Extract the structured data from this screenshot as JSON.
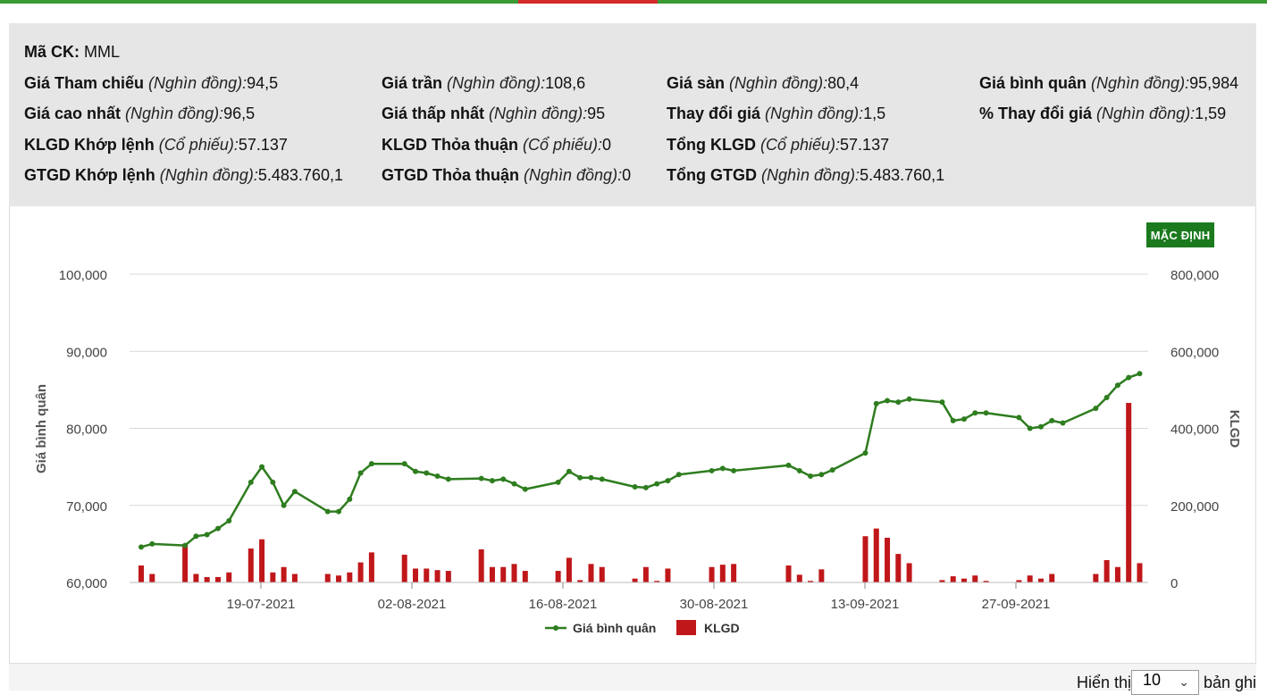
{
  "info": {
    "ticker_label": "Mã CK:",
    "ticker_value": "MML",
    "rows": [
      [
        {
          "label": "Giá Tham chiếu",
          "unit": "(Nghìn đồng):",
          "value": "94,5"
        },
        {
          "label": "Giá trần",
          "unit": "(Nghìn đồng):",
          "value": "108,6"
        },
        {
          "label": "Giá sàn",
          "unit": "(Nghìn đồng):",
          "value": "80,4"
        },
        {
          "label": "Giá bình quân",
          "unit": "(Nghìn đồng):",
          "value": "95,984"
        }
      ],
      [
        {
          "label": "Giá cao nhất",
          "unit": "(Nghìn đồng):",
          "value": "96,5"
        },
        {
          "label": "Giá thấp nhất",
          "unit": "(Nghìn đồng):",
          "value": "95"
        },
        {
          "label": "Thay đổi giá",
          "unit": "(Nghìn đồng):",
          "value": "1,5"
        },
        {
          "label": "% Thay đổi giá",
          "unit": "(Nghìn đồng):",
          "value": "1,59"
        }
      ],
      [
        {
          "label": "KLGD Khớp lệnh",
          "unit": "(Cổ phiếu):",
          "value": "57.137"
        },
        {
          "label": "KLGD Thỏa thuận",
          "unit": "(Cổ phiếu):",
          "value": "0"
        },
        {
          "label": "Tổng KLGD",
          "unit": "(Cổ phiếu):",
          "value": "57.137"
        }
      ],
      [
        {
          "label": "GTGD Khớp lệnh",
          "unit": "(Nghìn đồng):",
          "value": "5.483.760,1"
        },
        {
          "label": "GTGD Thỏa thuận",
          "unit": "(Nghìn đồng):",
          "value": "0"
        },
        {
          "label": "Tổng GTGD",
          "unit": "(Nghìn đồng):",
          "value": "5.483.760,1"
        }
      ]
    ]
  },
  "default_button": "MẶC ĐỊNH",
  "chart_data": {
    "type": "line+bar",
    "x_tick_labels": [
      "19-07-2021",
      "02-08-2021",
      "16-08-2021",
      "30-08-2021",
      "13-09-2021",
      "27-09-2021"
    ],
    "y_left": {
      "label": "Giá bình quân",
      "ticks": [
        "100,000",
        "90,000",
        "80,000",
        "70,000",
        "60,000"
      ],
      "range": [
        60000,
        100000
      ]
    },
    "y_right": {
      "label": "KLGD",
      "ticks": [
        "800,000",
        "600,000",
        "400,000",
        "200,000",
        "0"
      ],
      "range": [
        0,
        800000
      ]
    },
    "legend": [
      {
        "name": "Giá bình quân",
        "color": "#2e7d1f",
        "kind": "line"
      },
      {
        "name": "KLGD",
        "color": "#c0171a",
        "kind": "bar"
      }
    ],
    "start_date": "2021-07-08",
    "price_series": [
      [
        0,
        64600
      ],
      [
        1,
        65000
      ],
      [
        4,
        64800
      ],
      [
        5,
        66000
      ],
      [
        6,
        66200
      ],
      [
        7,
        67000
      ],
      [
        8,
        68000
      ],
      [
        10,
        73000
      ],
      [
        11,
        75000
      ],
      [
        12,
        73000
      ],
      [
        13,
        70000
      ],
      [
        14,
        71800
      ],
      [
        17,
        69200
      ],
      [
        18,
        69200
      ],
      [
        19,
        70800
      ],
      [
        20,
        74200
      ],
      [
        21,
        75400
      ],
      [
        24,
        75400
      ],
      [
        25,
        74400
      ],
      [
        26,
        74200
      ],
      [
        27,
        73800
      ],
      [
        28,
        73400
      ],
      [
        31,
        73500
      ],
      [
        32,
        73200
      ],
      [
        33,
        73400
      ],
      [
        34,
        72800
      ],
      [
        35,
        72100
      ],
      [
        38,
        73000
      ],
      [
        39,
        74400
      ],
      [
        40,
        73600
      ],
      [
        41,
        73600
      ],
      [
        42,
        73400
      ],
      [
        45,
        72400
      ],
      [
        46,
        72300
      ],
      [
        47,
        72800
      ],
      [
        48,
        73200
      ],
      [
        49,
        74000
      ],
      [
        52,
        74500
      ],
      [
        53,
        74800
      ],
      [
        54,
        74500
      ],
      [
        59,
        75200
      ],
      [
        60,
        74500
      ],
      [
        61,
        73800
      ],
      [
        62,
        74000
      ],
      [
        63,
        74600
      ],
      [
        66,
        76800
      ],
      [
        67,
        83200
      ],
      [
        68,
        83600
      ],
      [
        69,
        83400
      ],
      [
        70,
        83800
      ],
      [
        73,
        83400
      ],
      [
        74,
        81000
      ],
      [
        75,
        81200
      ],
      [
        76,
        82000
      ],
      [
        77,
        82000
      ],
      [
        80,
        81400
      ],
      [
        81,
        80000
      ],
      [
        82,
        80200
      ],
      [
        83,
        81000
      ],
      [
        84,
        80700
      ],
      [
        87,
        82600
      ],
      [
        88,
        84000
      ],
      [
        89,
        85600
      ],
      [
        90,
        86600
      ],
      [
        91,
        87100
      ]
    ],
    "volume_series": [
      [
        0,
        44000
      ],
      [
        1,
        22000
      ],
      [
        4,
        100000
      ],
      [
        5,
        22000
      ],
      [
        6,
        14000
      ],
      [
        7,
        14000
      ],
      [
        8,
        26000
      ],
      [
        10,
        88000
      ],
      [
        11,
        112000
      ],
      [
        12,
        26000
      ],
      [
        13,
        40000
      ],
      [
        14,
        22000
      ],
      [
        17,
        22000
      ],
      [
        18,
        18000
      ],
      [
        19,
        26000
      ],
      [
        20,
        52000
      ],
      [
        21,
        78000
      ],
      [
        24,
        72000
      ],
      [
        25,
        36000
      ],
      [
        26,
        36000
      ],
      [
        27,
        32000
      ],
      [
        28,
        30000
      ],
      [
        31,
        86000
      ],
      [
        32,
        40000
      ],
      [
        33,
        40000
      ],
      [
        34,
        48000
      ],
      [
        35,
        30000
      ],
      [
        38,
        30000
      ],
      [
        39,
        64000
      ],
      [
        40,
        6000
      ],
      [
        41,
        48000
      ],
      [
        42,
        40000
      ],
      [
        45,
        10000
      ],
      [
        46,
        40000
      ],
      [
        47,
        4000
      ],
      [
        48,
        36000
      ],
      [
        52,
        40000
      ],
      [
        53,
        46000
      ],
      [
        54,
        48000
      ],
      [
        59,
        44000
      ],
      [
        60,
        20000
      ],
      [
        61,
        4000
      ],
      [
        62,
        34000
      ],
      [
        66,
        120000
      ],
      [
        67,
        140000
      ],
      [
        68,
        116000
      ],
      [
        69,
        74000
      ],
      [
        70,
        50000
      ],
      [
        73,
        6000
      ],
      [
        74,
        16000
      ],
      [
        75,
        10000
      ],
      [
        76,
        18000
      ],
      [
        77,
        4000
      ],
      [
        80,
        6000
      ],
      [
        81,
        18000
      ],
      [
        82,
        10000
      ],
      [
        83,
        22000
      ],
      [
        87,
        22000
      ],
      [
        88,
        58000
      ],
      [
        89,
        40000
      ],
      [
        90,
        466000
      ],
      [
        91,
        50000
      ]
    ]
  },
  "footer": {
    "show_label": "Hiển thị",
    "show_value": "10",
    "rows_label": "bản ghi"
  }
}
